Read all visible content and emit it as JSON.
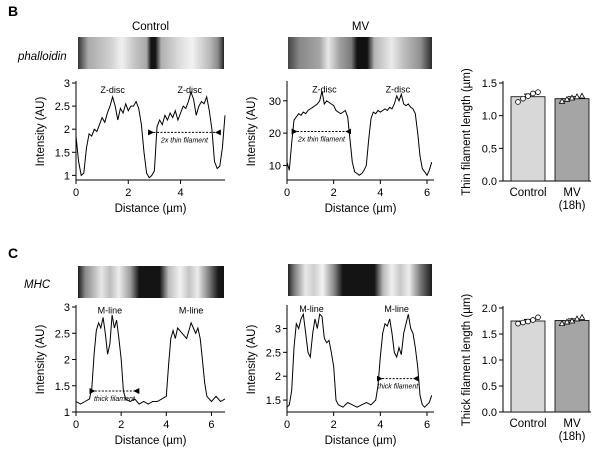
{
  "panels": [
    {
      "letter": "B",
      "row_label": "phalloidin"
    },
    {
      "letter": "C",
      "row_label": "MHC"
    }
  ],
  "colors": {
    "control_bar": "#d8d8d8",
    "mv_bar": "#a5a5a5",
    "line": "#000000"
  },
  "chart_data": [
    {
      "id": "b-control",
      "type": "line",
      "title": "Control",
      "xlabel": "Distance (µm)",
      "ylabel": "Intensity (AU)",
      "xlim": [
        0,
        5.7
      ],
      "ylim": [
        0.9,
        3.0
      ],
      "xticks": [
        0,
        2,
        4
      ],
      "yticks": [
        1.0,
        1.5,
        2.0,
        2.5,
        3.0
      ],
      "annotations": [
        {
          "text": "Z-disc",
          "x": 1.4,
          "y": 2.78
        },
        {
          "text": "Z-disc",
          "x": 4.35,
          "y": 2.78
        }
      ],
      "span_arrow": {
        "text": "2x thin filament",
        "x": [
          2.85,
          5.45
        ],
        "y": 1.93
      },
      "x": [
        0,
        0.1,
        0.2,
        0.3,
        0.4,
        0.5,
        0.6,
        0.7,
        0.8,
        0.9,
        1.0,
        1.1,
        1.2,
        1.3,
        1.4,
        1.5,
        1.6,
        1.7,
        1.8,
        1.9,
        2.0,
        2.1,
        2.2,
        2.3,
        2.4,
        2.5,
        2.6,
        2.7,
        2.8,
        2.9,
        3.0,
        3.1,
        3.2,
        3.3,
        3.4,
        3.5,
        3.6,
        3.7,
        3.8,
        3.9,
        4.0,
        4.1,
        4.2,
        4.3,
        4.4,
        4.5,
        4.6,
        4.7,
        4.8,
        4.9,
        5.0,
        5.1,
        5.2,
        5.3,
        5.4,
        5.5,
        5.6,
        5.7
      ],
      "y": [
        1.85,
        1.3,
        1.0,
        1.05,
        1.6,
        1.9,
        1.85,
        2.0,
        1.95,
        2.1,
        2.25,
        2.15,
        2.35,
        2.5,
        2.7,
        2.5,
        2.2,
        2.45,
        2.35,
        2.55,
        2.4,
        2.5,
        2.5,
        2.6,
        2.45,
        2.1,
        1.5,
        1.05,
        0.95,
        1.0,
        1.1,
        2.05,
        2.2,
        2.1,
        2.3,
        2.2,
        2.35,
        2.25,
        2.4,
        2.2,
        2.35,
        2.5,
        2.45,
        2.6,
        2.8,
        2.65,
        2.3,
        2.5,
        2.6,
        2.55,
        2.7,
        2.4,
        2.0,
        1.3,
        1.15,
        1.2,
        1.6,
        2.3
      ]
    },
    {
      "id": "b-mv",
      "type": "line",
      "title": "MV",
      "xlabel": "Distance (µm)",
      "ylabel": "Intensity (AU)",
      "xlim": [
        0,
        6.3
      ],
      "ylim": [
        5.5,
        35.5
      ],
      "xticks": [
        0,
        2,
        4,
        6
      ],
      "yticks": [
        10,
        20,
        30
      ],
      "annotations": [
        {
          "text": "Z-disc",
          "x": 1.6,
          "y": 32.5
        },
        {
          "text": "Z-disc",
          "x": 4.75,
          "y": 32.5
        }
      ],
      "span_arrow": {
        "text": "2x thin filament",
        "x": [
          0.3,
          2.65
        ],
        "y": 20.5
      },
      "x": [
        0,
        0.1,
        0.2,
        0.3,
        0.4,
        0.5,
        0.6,
        0.7,
        0.8,
        0.9,
        1.0,
        1.1,
        1.2,
        1.3,
        1.4,
        1.5,
        1.6,
        1.7,
        1.8,
        1.9,
        2.0,
        2.1,
        2.2,
        2.3,
        2.4,
        2.5,
        2.6,
        2.7,
        2.8,
        2.9,
        3.0,
        3.1,
        3.2,
        3.3,
        3.4,
        3.5,
        3.6,
        3.7,
        3.8,
        3.9,
        4.0,
        4.1,
        4.2,
        4.3,
        4.4,
        4.5,
        4.6,
        4.7,
        4.8,
        4.9,
        5.0,
        5.1,
        5.2,
        5.3,
        5.4,
        5.5,
        5.6,
        5.7,
        5.8,
        5.9,
        6.0,
        6.1,
        6.2
      ],
      "y": [
        11,
        8.5,
        17,
        24,
        25,
        26,
        25.5,
        26.5,
        26,
        27,
        27.5,
        28,
        28.5,
        29,
        30,
        33,
        29,
        30,
        29.5,
        29,
        28.5,
        27,
        26.5,
        26,
        26.5,
        27,
        25,
        18,
        11,
        8,
        7.5,
        7,
        7.5,
        8.5,
        10,
        18,
        24.5,
        26.5,
        26,
        27,
        26.5,
        27,
        27.5,
        27,
        28,
        27.5,
        29,
        31.5,
        30,
        32,
        29,
        28.5,
        29,
        28,
        27.5,
        26,
        20,
        13,
        9,
        8,
        7,
        8.5,
        11
      ]
    },
    {
      "id": "b-bar",
      "type": "bar",
      "categories": [
        "Control",
        "MV (18h)"
      ],
      "ylabel": "Thin filament length (µm)",
      "ylim": [
        0,
        1.5
      ],
      "yticks": [
        0.0,
        0.5,
        1.0,
        1.5
      ],
      "values": [
        1.29,
        1.26
      ],
      "errors": [
        0.04,
        0.03
      ],
      "points": [
        [
          1.21,
          1.26,
          1.3,
          1.34,
          1.36
        ],
        [
          1.22,
          1.25,
          1.27,
          1.29,
          1.3
        ]
      ],
      "markers": [
        "circle",
        "triangle"
      ]
    },
    {
      "id": "c-control",
      "type": "line",
      "xlabel": "Distance (µm)",
      "ylabel": "Intensity (AU)",
      "xlim": [
        0,
        6.6
      ],
      "ylim": [
        1.0,
        3.0
      ],
      "xticks": [
        0,
        2,
        4,
        6
      ],
      "yticks": [
        1.0,
        1.5,
        2.0,
        2.5,
        3.0
      ],
      "annotations": [
        {
          "text": "M-line",
          "x": 1.5,
          "y": 2.88
        },
        {
          "text": "M-line",
          "x": 5.1,
          "y": 2.88
        }
      ],
      "span_arrow": {
        "text": "thick filament",
        "x": [
          0.7,
          2.7
        ],
        "y": 1.4
      },
      "x": [
        0,
        0.2,
        0.4,
        0.6,
        0.7,
        0.8,
        0.9,
        1.0,
        1.1,
        1.2,
        1.3,
        1.4,
        1.5,
        1.6,
        1.7,
        1.8,
        1.9,
        2.0,
        2.1,
        2.2,
        2.4,
        2.6,
        2.8,
        3.0,
        3.2,
        3.4,
        3.6,
        3.8,
        4.0,
        4.1,
        4.2,
        4.3,
        4.4,
        4.5,
        4.6,
        4.7,
        4.8,
        4.9,
        5.0,
        5.1,
        5.2,
        5.3,
        5.4,
        5.5,
        5.6,
        5.7,
        5.8,
        5.9,
        6.0,
        6.2,
        6.4,
        6.6
      ],
      "y": [
        1.2,
        1.15,
        1.2,
        1.25,
        1.45,
        2.1,
        2.55,
        2.7,
        2.6,
        2.8,
        2.5,
        2.1,
        2.3,
        2.85,
        2.6,
        2.75,
        2.4,
        2.0,
        1.4,
        1.25,
        1.2,
        1.25,
        1.15,
        1.2,
        1.15,
        1.2,
        1.2,
        1.25,
        1.3,
        1.9,
        2.4,
        2.55,
        2.4,
        2.6,
        2.55,
        2.5,
        2.45,
        2.4,
        2.55,
        2.7,
        2.6,
        2.5,
        2.6,
        2.4,
        2.0,
        1.55,
        1.3,
        1.25,
        1.2,
        1.3,
        1.2,
        1.25
      ]
    },
    {
      "id": "c-mv",
      "type": "line",
      "xlabel": "Distance (µm)",
      "ylabel": "Intensity (AU)",
      "xlim": [
        0,
        6.3
      ],
      "ylim": [
        1.25,
        3.45
      ],
      "xticks": [
        0,
        2,
        4,
        6
      ],
      "yticks": [
        1.5,
        2.0,
        2.5,
        3.0
      ],
      "annotations": [
        {
          "text": "M-line",
          "x": 1.05,
          "y": 3.35
        },
        {
          "text": "M-line",
          "x": 4.7,
          "y": 3.35
        }
      ],
      "span_arrow": {
        "text": "thick filament",
        "x": [
          3.95,
          5.55
        ],
        "y": 1.95
      },
      "x": [
        0,
        0.1,
        0.2,
        0.3,
        0.4,
        0.5,
        0.6,
        0.7,
        0.8,
        0.9,
        1.0,
        1.1,
        1.2,
        1.3,
        1.4,
        1.5,
        1.6,
        1.7,
        1.8,
        1.9,
        2.0,
        2.1,
        2.2,
        2.4,
        2.6,
        2.8,
        3.0,
        3.2,
        3.4,
        3.6,
        3.8,
        3.9,
        4.0,
        4.1,
        4.2,
        4.3,
        4.4,
        4.5,
        4.6,
        4.7,
        4.8,
        4.9,
        5.0,
        5.1,
        5.2,
        5.3,
        5.4,
        5.5,
        5.6,
        5.7,
        5.8,
        5.9,
        6.0,
        6.1,
        6.2
      ],
      "y": [
        1.35,
        1.4,
        1.7,
        2.6,
        3.1,
        3.0,
        3.2,
        3.3,
        2.9,
        2.5,
        2.4,
        2.9,
        3.2,
        3.0,
        3.3,
        3.25,
        2.8,
        2.7,
        2.75,
        2.5,
        2.2,
        1.5,
        1.4,
        1.35,
        1.45,
        1.4,
        1.35,
        1.4,
        1.45,
        1.4,
        1.5,
        1.8,
        2.4,
        2.9,
        3.1,
        3.05,
        3.2,
        2.9,
        2.5,
        2.4,
        2.6,
        2.45,
        2.9,
        3.1,
        3.3,
        3.0,
        2.9,
        2.6,
        2.2,
        1.6,
        1.4,
        1.35,
        1.4,
        1.45,
        1.6
      ]
    },
    {
      "id": "c-bar",
      "type": "bar",
      "categories": [
        "Control",
        "MV (18h)"
      ],
      "ylabel": "Thick filament length (µm)",
      "ylim": [
        0,
        2.0
      ],
      "yticks": [
        0.0,
        0.5,
        1.0,
        1.5,
        2.0
      ],
      "values": [
        1.75,
        1.76
      ],
      "errors": [
        0.03,
        0.03
      ],
      "points": [
        [
          1.7,
          1.72,
          1.74,
          1.77,
          1.82
        ],
        [
          1.7,
          1.73,
          1.75,
          1.79,
          1.82
        ]
      ],
      "markers": [
        "circle",
        "triangle"
      ]
    }
  ]
}
